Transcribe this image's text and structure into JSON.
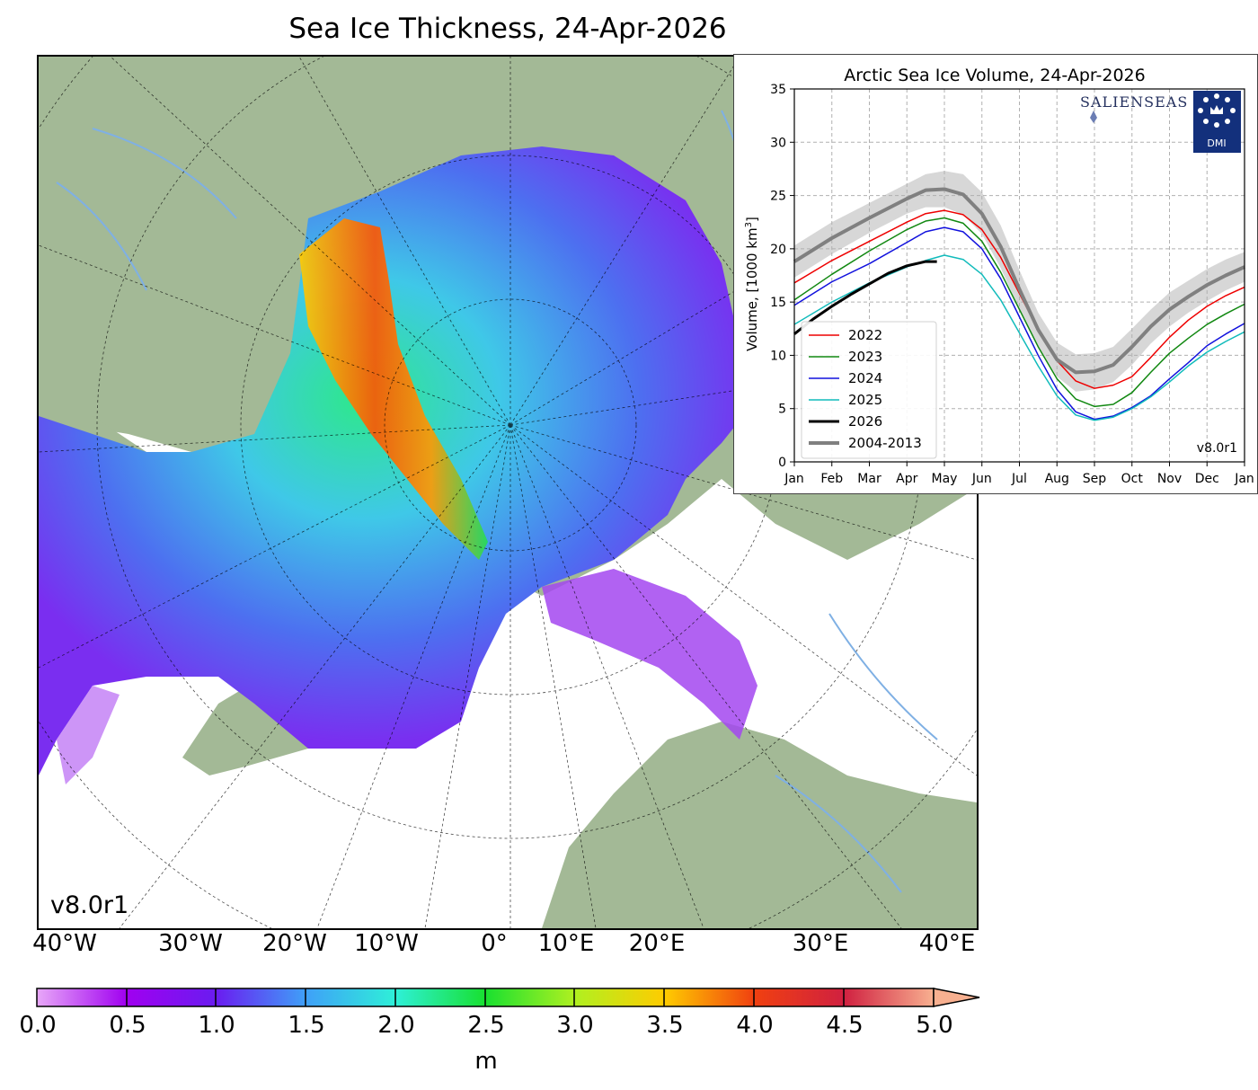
{
  "map": {
    "title": "Sea Ice Thickness, 24-Apr-2026",
    "version": "v8.0r1",
    "longitude_labels": [
      "40°W",
      "30°W",
      "20°W",
      "10°W",
      "0°",
      "10°E",
      "20°E",
      "30°E",
      "40°E"
    ],
    "colorbar": {
      "ticks": [
        "0.0",
        "0.5",
        "1.0",
        "1.5",
        "2.0",
        "2.5",
        "3.0",
        "3.5",
        "4.0",
        "4.5",
        "5.0"
      ],
      "unit": "m",
      "min": 0.0,
      "max": 5.0,
      "extend": "max"
    },
    "colors": {
      "land": "#a3b996",
      "ocean_open": "#ffffff",
      "rivers": "#7fb0e4",
      "coast": "#000000"
    }
  },
  "inset": {
    "title": "Arctic Sea Ice Volume, 24-Apr-2026",
    "ylabel": "Volume, [1000 km",
    "ylabel_sup": "3",
    "ylabel_end": "]",
    "logo_text": "SALIENSEAS",
    "dmi_text": "DMI",
    "version": "v8.0r1"
  },
  "chart_data": {
    "type": "line",
    "title": "Arctic Sea Ice Volume, 24-Apr-2026",
    "ylabel": "Volume, [1000 km3]",
    "x_ticks": [
      "Jan",
      "Feb",
      "Mar",
      "Apr",
      "May",
      "Jun",
      "Jul",
      "Aug",
      "Sep",
      "Oct",
      "Nov",
      "Dec",
      "Jan"
    ],
    "y_ticks": [
      0,
      5,
      10,
      15,
      20,
      25,
      30,
      35
    ],
    "ylim": [
      0,
      35
    ],
    "xlim": [
      0,
      12
    ],
    "grid": true,
    "legend_position": "lower-left",
    "series": [
      {
        "name": "2022",
        "color": "#ee0000",
        "width": 1.5,
        "x": [
          0,
          1,
          2,
          3,
          3.5,
          4,
          4.5,
          5,
          5.5,
          6,
          6.5,
          7,
          7.5,
          8,
          8.5,
          9,
          9.5,
          10,
          10.5,
          11,
          11.5,
          12
        ],
        "y": [
          16.8,
          18.9,
          20.7,
          22.5,
          23.3,
          23.6,
          23.2,
          21.8,
          19.2,
          15.8,
          12.4,
          9.5,
          7.6,
          6.9,
          7.2,
          8.0,
          9.8,
          11.7,
          13.3,
          14.6,
          15.6,
          16.4
        ]
      },
      {
        "name": "2023",
        "color": "#118811",
        "width": 1.5,
        "x": [
          0,
          1,
          2,
          3,
          3.5,
          4,
          4.5,
          5,
          5.5,
          6,
          6.5,
          7,
          7.5,
          8,
          8.5,
          9,
          9.5,
          10,
          10.5,
          11,
          11.5,
          12
        ],
        "y": [
          15.2,
          17.6,
          19.8,
          21.8,
          22.6,
          22.9,
          22.4,
          20.7,
          17.8,
          14.3,
          10.8,
          7.8,
          5.9,
          5.2,
          5.4,
          6.5,
          8.4,
          10.2,
          11.6,
          12.9,
          13.9,
          14.8
        ]
      },
      {
        "name": "2024",
        "color": "#1111dd",
        "width": 1.5,
        "x": [
          0,
          1,
          2,
          3,
          3.5,
          4,
          4.5,
          5,
          5.5,
          6,
          6.5,
          7,
          7.5,
          8,
          8.5,
          9,
          9.5,
          10,
          10.5,
          11,
          11.5,
          12
        ],
        "y": [
          14.7,
          16.9,
          18.6,
          20.6,
          21.6,
          22.0,
          21.6,
          20.0,
          17.2,
          13.6,
          10.0,
          6.8,
          4.7,
          4.0,
          4.3,
          5.1,
          6.2,
          7.8,
          9.3,
          10.9,
          12.0,
          13.0
        ]
      },
      {
        "name": "2025",
        "color": "#11bbbb",
        "width": 1.5,
        "x": [
          0,
          1,
          2,
          3,
          3.5,
          4,
          4.5,
          5,
          5.5,
          6,
          6.5,
          7,
          7.5,
          8,
          8.5,
          9,
          9.5,
          10,
          10.5,
          11,
          11.5,
          12
        ],
        "y": [
          12.9,
          15.0,
          16.8,
          18.3,
          18.9,
          19.4,
          19.0,
          17.6,
          15.2,
          12.1,
          9.0,
          6.2,
          4.4,
          3.9,
          4.2,
          5.0,
          6.1,
          7.5,
          9.0,
          10.3,
          11.3,
          12.2
        ]
      },
      {
        "name": "2026",
        "color": "#000000",
        "width": 3,
        "x": [
          0,
          0.5,
          1,
          1.5,
          2,
          2.5,
          3,
          3.5,
          3.8
        ],
        "y": [
          12.0,
          13.4,
          14.6,
          15.7,
          16.7,
          17.7,
          18.4,
          18.8,
          18.8
        ]
      },
      {
        "name": "2004-2013",
        "color": "#808080",
        "width": 4,
        "x": [
          0,
          1,
          2,
          3,
          3.5,
          4,
          4.5,
          5,
          5.5,
          6,
          6.5,
          7,
          7.5,
          8,
          8.5,
          9,
          9.5,
          10,
          10.5,
          11,
          11.5,
          12
        ],
        "y": [
          18.8,
          21.0,
          22.9,
          24.7,
          25.5,
          25.6,
          25.1,
          23.3,
          20.2,
          16.2,
          12.4,
          9.6,
          8.4,
          8.5,
          9.1,
          10.8,
          12.7,
          14.3,
          15.5,
          16.6,
          17.5,
          18.3
        ],
        "band_low": [
          17.3,
          19.5,
          21.5,
          23.3,
          23.9,
          23.9,
          23.2,
          21.4,
          18.2,
          14.3,
          10.9,
          8.0,
          6.6,
          6.8,
          7.5,
          9.1,
          11.1,
          12.7,
          14.0,
          15.1,
          16.1,
          16.9
        ],
        "band_high": [
          20.3,
          22.5,
          24.3,
          26.1,
          27.0,
          27.3,
          27.0,
          25.3,
          22.2,
          18.0,
          14.0,
          11.2,
          10.1,
          10.2,
          10.8,
          12.5,
          14.3,
          15.9,
          17.0,
          18.1,
          19.0,
          19.7
        ]
      }
    ]
  }
}
